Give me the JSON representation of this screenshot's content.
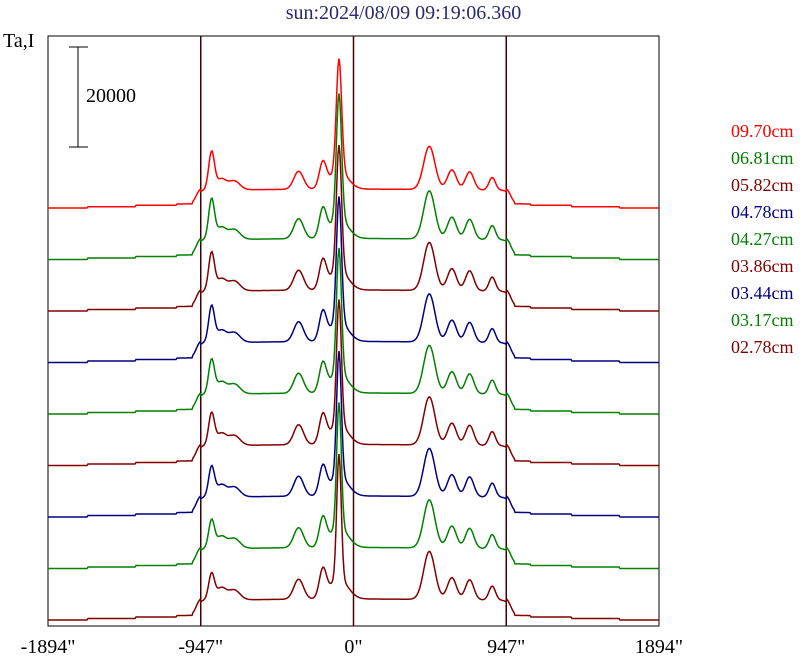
{
  "title": "sun:2024/08/09 09:19:06.360",
  "ylabel": "Ta,I",
  "scale_bar_label": "20000",
  "chart_data": {
    "type": "line",
    "title": "sun:2024/08/09 09:19:06.360",
    "ylabel": "Ta,I",
    "xlabel": "",
    "x_ticks": [
      "-1894\"",
      "-947\"",
      "0\"",
      "947\"",
      "1894\""
    ],
    "x_tick_values": [
      -1894,
      -947,
      0,
      947,
      1894
    ],
    "xlim": [
      -1894,
      1894
    ],
    "scale_bar": 20000,
    "vertical_lines": [
      -947,
      0,
      947
    ],
    "series": [
      {
        "name": "09.70cm",
        "color": "#ff0000"
      },
      {
        "name": "06.81cm",
        "color": "#008000"
      },
      {
        "name": "05.82cm",
        "color": "#800000"
      },
      {
        "name": "04.78cm",
        "color": "#000080"
      },
      {
        "name": "04.27cm",
        "color": "#008000"
      },
      {
        "name": "03.86cm",
        "color": "#800000"
      },
      {
        "name": "03.44cm",
        "color": "#000080"
      },
      {
        "name": "03.17cm",
        "color": "#008000"
      },
      {
        "name": "02.78cm",
        "color": "#800000"
      }
    ]
  }
}
